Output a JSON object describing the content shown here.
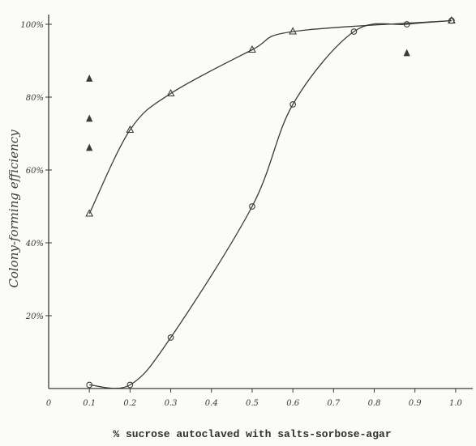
{
  "chart_data": {
    "type": "scatter",
    "title": "",
    "xlabel": "% sucrose autoclaved with salts-sorbose-agar",
    "ylabel": "Colony-forming efficiency",
    "xlim": [
      0,
      1.05
    ],
    "ylim": [
      0,
      100
    ],
    "x_ticks": [
      "0",
      "0.1",
      "0.2",
      "0.3",
      "0.4",
      "0.5",
      "0.6",
      "0.7",
      "0.8",
      "0.9",
      "1.0"
    ],
    "y_ticks": [
      "20%",
      "40%",
      "60%",
      "80%",
      "100%"
    ],
    "grid": false,
    "legend": null,
    "series": [
      {
        "marker": "open-triangle",
        "curve": true,
        "x": [
          0.1,
          0.2,
          0.3,
          0.5,
          0.6,
          0.99
        ],
        "y": [
          48,
          71,
          81,
          93,
          98,
          101
        ]
      },
      {
        "marker": "open-circle",
        "curve": true,
        "x": [
          0.1,
          0.2,
          0.3,
          0.5,
          0.6,
          0.75,
          0.88,
          0.99
        ],
        "y": [
          1,
          1,
          14,
          50,
          78,
          98,
          100,
          101
        ]
      },
      {
        "marker": "filled-triangle",
        "curve": false,
        "x": [
          0.1,
          0.1,
          0.1,
          0.88
        ],
        "y": [
          85,
          74,
          66,
          92
        ]
      }
    ],
    "colors": {
      "ink": "#3a3a3a",
      "paper": "#fbfbf8"
    }
  }
}
